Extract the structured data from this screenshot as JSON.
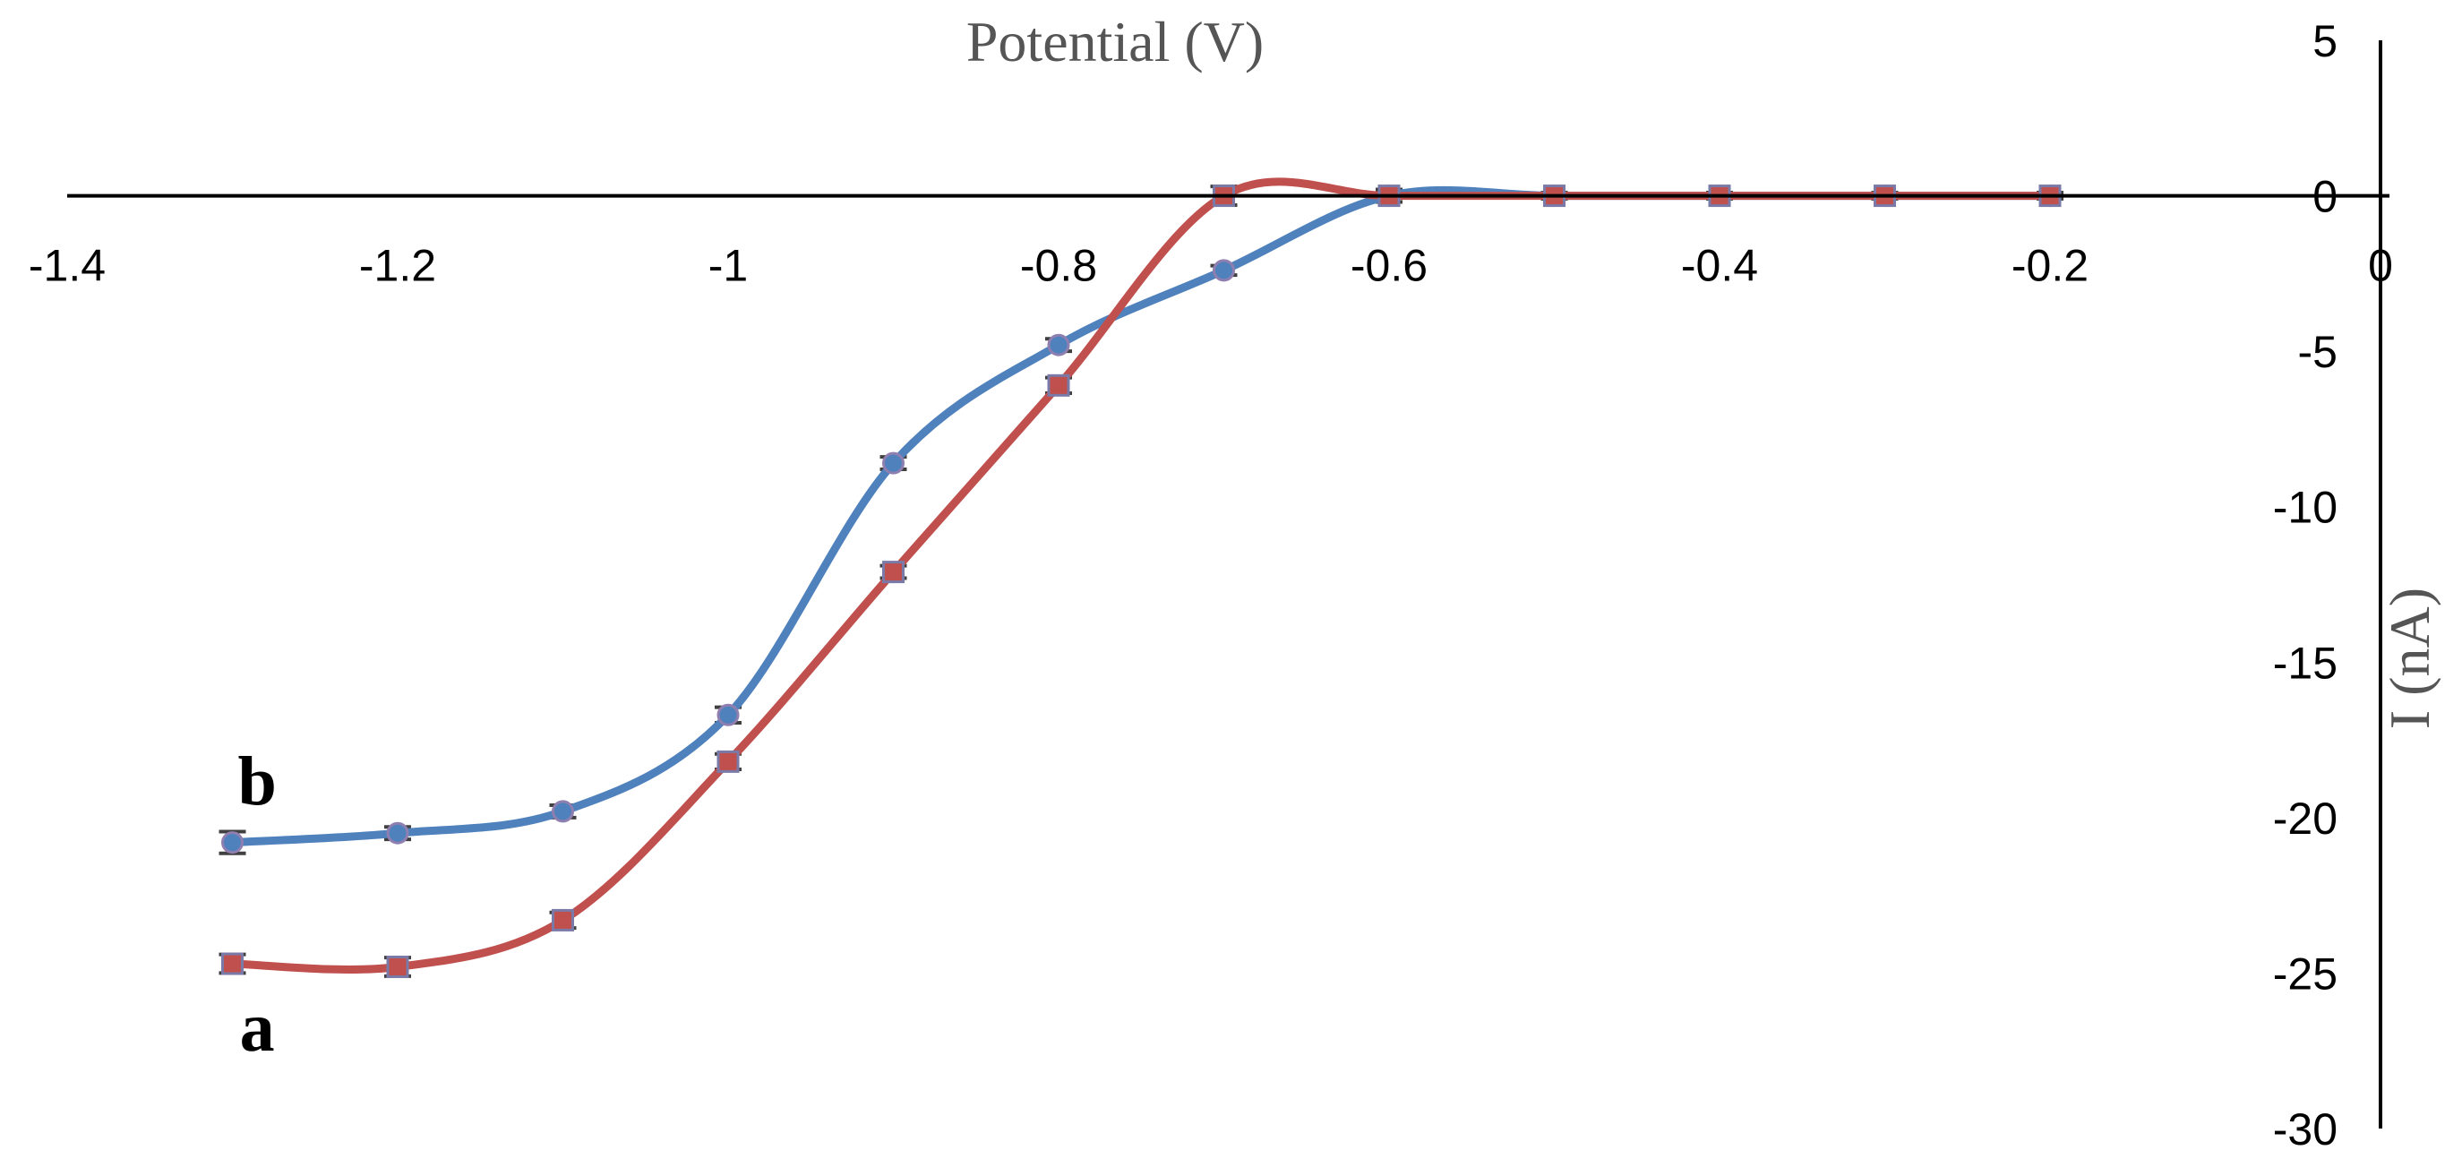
{
  "chart_data": {
    "type": "line",
    "title": "",
    "xlabel": "Potential (V)",
    "ylabel": "I (nA)",
    "xlim": [
      -1.4,
      0
    ],
    "ylim": [
      -30,
      5
    ],
    "xticks": [
      -1.4,
      -1.2,
      -1,
      -0.8,
      -0.6,
      -0.4,
      -0.2,
      0
    ],
    "xtick_labels": [
      "-1.4",
      "-1.2",
      "-1",
      "-0.8",
      "-0.6",
      "-0.4",
      "-0.2",
      "0"
    ],
    "yticks": [
      5,
      0,
      -5,
      -10,
      -15,
      -20,
      -25,
      -30
    ],
    "ytick_labels": [
      "5",
      "0",
      "-5",
      "-10",
      "-15",
      "-20",
      "-25",
      "-30"
    ],
    "grid": false,
    "error_bars": true,
    "series": [
      {
        "name": "a",
        "label": "a",
        "color": "#c0504d",
        "marker": "square",
        "x": [
          -1.3,
          -1.2,
          -1.1,
          -1.0,
          -0.9,
          -0.8,
          -0.7,
          -0.6,
          -0.5,
          -0.4,
          -0.3,
          -0.2
        ],
        "y": [
          -24.7,
          -24.8,
          -23.3,
          -18.2,
          -12.1,
          -6.1,
          0,
          0,
          0,
          0,
          0,
          0
        ],
        "err": [
          0.3,
          0.3,
          0.25,
          0.25,
          0.2,
          0.25,
          0.3,
          0.2,
          0.1,
          0.1,
          0.1,
          0.1
        ]
      },
      {
        "name": "b",
        "label": "b",
        "color": "#4f81bd",
        "marker": "circle",
        "x": [
          -1.3,
          -1.2,
          -1.1,
          -1.0,
          -0.9,
          -0.8,
          -0.7,
          -0.6,
          -0.5,
          -0.4,
          -0.3,
          -0.2
        ],
        "y": [
          -20.8,
          -20.5,
          -19.8,
          -16.7,
          -8.6,
          -4.8,
          -2.4,
          0,
          0,
          0,
          0,
          0
        ],
        "err": [
          0.35,
          0.2,
          0.2,
          0.25,
          0.2,
          0.2,
          0.15,
          0.2,
          0.1,
          0.1,
          0.1,
          0.1
        ]
      }
    ]
  }
}
